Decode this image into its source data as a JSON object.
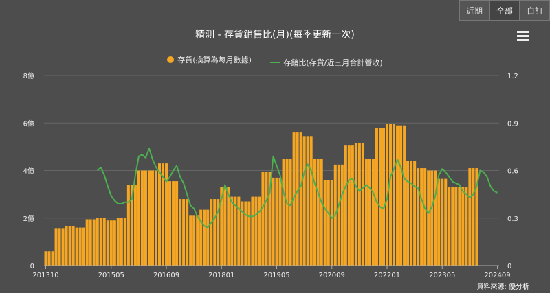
{
  "tabs": [
    {
      "label": "近期",
      "active": false
    },
    {
      "label": "全部",
      "active": true
    },
    {
      "label": "自訂",
      "active": false
    }
  ],
  "title": "精測 - 存貨銷售比(月)(每季更新一次)",
  "menu_icon": "hamburger-menu-icon",
  "source": "資料來源: 優分析",
  "colors": {
    "bar": "#f5a623",
    "line": "#4caf50",
    "background": "#4d4d4d",
    "grid": "#666666"
  },
  "chart_data": {
    "type": "bar",
    "title": "精測 - 存貨銷售比(月)(每季更新一次)",
    "legend_position": "top-center",
    "grid": true,
    "x_tick_labels": [
      "201310",
      "201505",
      "201609",
      "201801",
      "201905",
      "202009",
      "202201",
      "202305",
      "202409"
    ],
    "y_left": {
      "ticks": [
        "0",
        "2億",
        "4億",
        "6億",
        "8億"
      ],
      "lim": [
        0,
        8
      ]
    },
    "y_right": {
      "ticks": [
        "0",
        "0.3",
        "0.6",
        "0.9",
        "1.2"
      ],
      "lim": [
        0,
        1.2
      ]
    },
    "series": [
      {
        "name": "存貨(換算為每月數據)",
        "type": "bar",
        "axis": "left",
        "start": "2013-10",
        "values": [
          0.6,
          0.6,
          0.6,
          1.55,
          1.55,
          1.55,
          1.65,
          1.65,
          1.65,
          1.6,
          1.6,
          1.6,
          1.95,
          1.95,
          1.95,
          2.0,
          2.0,
          2.0,
          1.9,
          1.9,
          1.9,
          2.0,
          2.0,
          2.0,
          3.4,
          3.4,
          3.4,
          4.0,
          4.0,
          4.0,
          4.0,
          4.0,
          4.0,
          4.3,
          4.3,
          4.3,
          3.55,
          3.55,
          3.55,
          2.8,
          2.8,
          2.8,
          2.1,
          2.1,
          2.1,
          2.35,
          2.35,
          2.35,
          2.8,
          2.8,
          2.8,
          3.3,
          3.3,
          3.3,
          2.9,
          2.9,
          2.9,
          2.7,
          2.7,
          2.7,
          2.9,
          2.9,
          2.9,
          3.95,
          3.95,
          3.95,
          3.7,
          3.7,
          3.7,
          4.5,
          4.5,
          4.5,
          5.6,
          5.6,
          5.6,
          5.45,
          5.45,
          5.45,
          4.5,
          4.5,
          4.5,
          3.6,
          3.6,
          3.6,
          4.25,
          4.25,
          4.25,
          5.05,
          5.05,
          5.05,
          5.15,
          5.15,
          5.15,
          4.5,
          4.5,
          4.5,
          5.8,
          5.8,
          5.8,
          5.95,
          5.95,
          5.95,
          5.9,
          5.9,
          5.9,
          4.4,
          4.4,
          4.4,
          4.1,
          4.1,
          4.1,
          4.0,
          4.0,
          4.0,
          3.65,
          3.65,
          3.65,
          3.3,
          3.3,
          3.3,
          3.3,
          3.3,
          3.3,
          4.1,
          4.1,
          4.1
        ]
      },
      {
        "name": "存銷比(存貨/近三月合計營收)",
        "type": "line",
        "axis": "right",
        "points": [
          [
            "2015-01",
            0.6
          ],
          [
            "2015-02",
            0.62
          ],
          [
            "2015-03",
            0.57
          ],
          [
            "2015-04",
            0.5
          ],
          [
            "2015-05",
            0.44
          ],
          [
            "2015-06",
            0.41
          ],
          [
            "2015-07",
            0.39
          ],
          [
            "2015-08",
            0.39
          ],
          [
            "2015-09",
            0.4
          ],
          [
            "2015-10",
            0.4
          ],
          [
            "2015-11",
            0.42
          ],
          [
            "2015-12",
            0.57
          ],
          [
            "2016-01",
            0.69
          ],
          [
            "2016-02",
            0.7
          ],
          [
            "2016-03",
            0.68
          ],
          [
            "2016-04",
            0.74
          ],
          [
            "2016-05",
            0.67
          ],
          [
            "2016-06",
            0.62
          ],
          [
            "2016-07",
            0.59
          ],
          [
            "2016-08",
            0.56
          ],
          [
            "2016-09",
            0.53
          ],
          [
            "2016-10",
            0.56
          ],
          [
            "2016-11",
            0.6
          ],
          [
            "2016-12",
            0.63
          ],
          [
            "2017-01",
            0.56
          ],
          [
            "2017-02",
            0.52
          ],
          [
            "2017-03",
            0.45
          ],
          [
            "2017-04",
            0.38
          ],
          [
            "2017-05",
            0.36
          ],
          [
            "2017-06",
            0.31
          ],
          [
            "2017-07",
            0.28
          ],
          [
            "2017-08",
            0.25
          ],
          [
            "2017-09",
            0.24
          ],
          [
            "2017-10",
            0.27
          ],
          [
            "2017-11",
            0.3
          ],
          [
            "2017-12",
            0.34
          ],
          [
            "2018-01",
            0.42
          ],
          [
            "2018-02",
            0.51
          ],
          [
            "2018-03",
            0.45
          ],
          [
            "2018-04",
            0.4
          ],
          [
            "2018-05",
            0.38
          ],
          [
            "2018-06",
            0.36
          ],
          [
            "2018-07",
            0.34
          ],
          [
            "2018-08",
            0.32
          ],
          [
            "2018-09",
            0.31
          ],
          [
            "2018-10",
            0.31
          ],
          [
            "2018-11",
            0.32
          ],
          [
            "2018-12",
            0.34
          ],
          [
            "2019-01",
            0.37
          ],
          [
            "2019-02",
            0.41
          ],
          [
            "2019-03",
            0.46
          ],
          [
            "2019-04",
            0.69
          ],
          [
            "2019-05",
            0.63
          ],
          [
            "2019-06",
            0.57
          ],
          [
            "2019-07",
            0.46
          ],
          [
            "2019-08",
            0.39
          ],
          [
            "2019-09",
            0.38
          ],
          [
            "2019-10",
            0.43
          ],
          [
            "2019-11",
            0.47
          ],
          [
            "2019-12",
            0.5
          ],
          [
            "2020-01",
            0.59
          ],
          [
            "2020-02",
            0.64
          ],
          [
            "2020-03",
            0.6
          ],
          [
            "2020-04",
            0.52
          ],
          [
            "2020-05",
            0.46
          ],
          [
            "2020-06",
            0.4
          ],
          [
            "2020-07",
            0.36
          ],
          [
            "2020-08",
            0.33
          ],
          [
            "2020-09",
            0.3
          ],
          [
            "2020-10",
            0.32
          ],
          [
            "2020-11",
            0.38
          ],
          [
            "2020-12",
            0.45
          ],
          [
            "2021-01",
            0.5
          ],
          [
            "2021-02",
            0.54
          ],
          [
            "2021-03",
            0.55
          ],
          [
            "2021-04",
            0.5
          ],
          [
            "2021-05",
            0.47
          ],
          [
            "2021-06",
            0.49
          ],
          [
            "2021-07",
            0.51
          ],
          [
            "2021-08",
            0.49
          ],
          [
            "2021-09",
            0.46
          ],
          [
            "2021-10",
            0.4
          ],
          [
            "2021-11",
            0.37
          ],
          [
            "2021-12",
            0.36
          ],
          [
            "2022-01",
            0.42
          ],
          [
            "2022-02",
            0.56
          ],
          [
            "2022-03",
            0.61
          ],
          [
            "2022-04",
            0.67
          ],
          [
            "2022-05",
            0.62
          ],
          [
            "2022-06",
            0.55
          ],
          [
            "2022-07",
            0.53
          ],
          [
            "2022-08",
            0.52
          ],
          [
            "2022-09",
            0.5
          ],
          [
            "2022-10",
            0.49
          ],
          [
            "2022-11",
            0.42
          ],
          [
            "2022-12",
            0.36
          ],
          [
            "2023-01",
            0.33
          ],
          [
            "2023-02",
            0.37
          ],
          [
            "2023-03",
            0.44
          ],
          [
            "2023-04",
            0.57
          ],
          [
            "2023-05",
            0.61
          ],
          [
            "2023-06",
            0.59
          ],
          [
            "2023-07",
            0.56
          ],
          [
            "2023-08",
            0.53
          ],
          [
            "2023-09",
            0.52
          ],
          [
            "2023-10",
            0.51
          ],
          [
            "2023-11",
            0.47
          ],
          [
            "2023-12",
            0.45
          ],
          [
            "2024-01",
            0.43
          ],
          [
            "2024-02",
            0.45
          ],
          [
            "2024-03",
            0.5
          ],
          [
            "2024-04",
            0.6
          ],
          [
            "2024-05",
            0.59
          ],
          [
            "2024-06",
            0.56
          ],
          [
            "2024-07",
            0.5
          ],
          [
            "2024-08",
            0.47
          ],
          [
            "2024-09",
            0.46
          ]
        ]
      }
    ]
  }
}
